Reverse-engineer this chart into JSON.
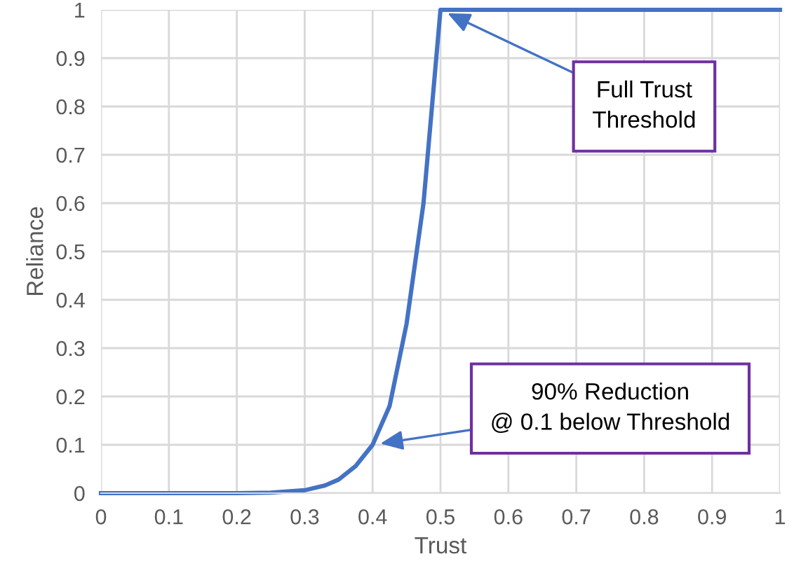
{
  "chart_data": {
    "type": "line",
    "xlabel": "Trust",
    "ylabel": "Reliance",
    "series": [
      {
        "color": "#4472c4",
        "x": [
          0,
          0.1,
          0.2,
          0.25,
          0.3,
          0.33,
          0.35,
          0.375,
          0.4,
          0.425,
          0.45,
          0.475,
          0.5,
          0.6,
          0.7,
          0.8,
          0.9,
          1
        ],
        "values": [
          0,
          0,
          0,
          0.001,
          0.006,
          0.016,
          0.028,
          0.056,
          0.1,
          0.18,
          0.35,
          0.6,
          1,
          1,
          1,
          1,
          1,
          1
        ]
      }
    ],
    "annotations": [
      {
        "text": "Full Trust\nThreshold",
        "x": 0.5,
        "y": 1
      },
      {
        "text": "90% Reduction\n@ 0.1 below Threshold",
        "x": 0.4,
        "y": 0.1
      }
    ],
    "xlim": [
      0,
      1
    ],
    "ylim": [
      0,
      1
    ],
    "xticks": [
      0,
      0.1,
      0.2,
      0.3,
      0.4,
      0.5,
      0.6,
      0.7,
      0.8,
      0.9,
      1
    ],
    "yticks": [
      0,
      0.1,
      0.2,
      0.3,
      0.4,
      0.5,
      0.6,
      0.7,
      0.8,
      0.9,
      1
    ],
    "grid": true,
    "marker": "none",
    "line_style": "solid",
    "legend": false
  }
}
